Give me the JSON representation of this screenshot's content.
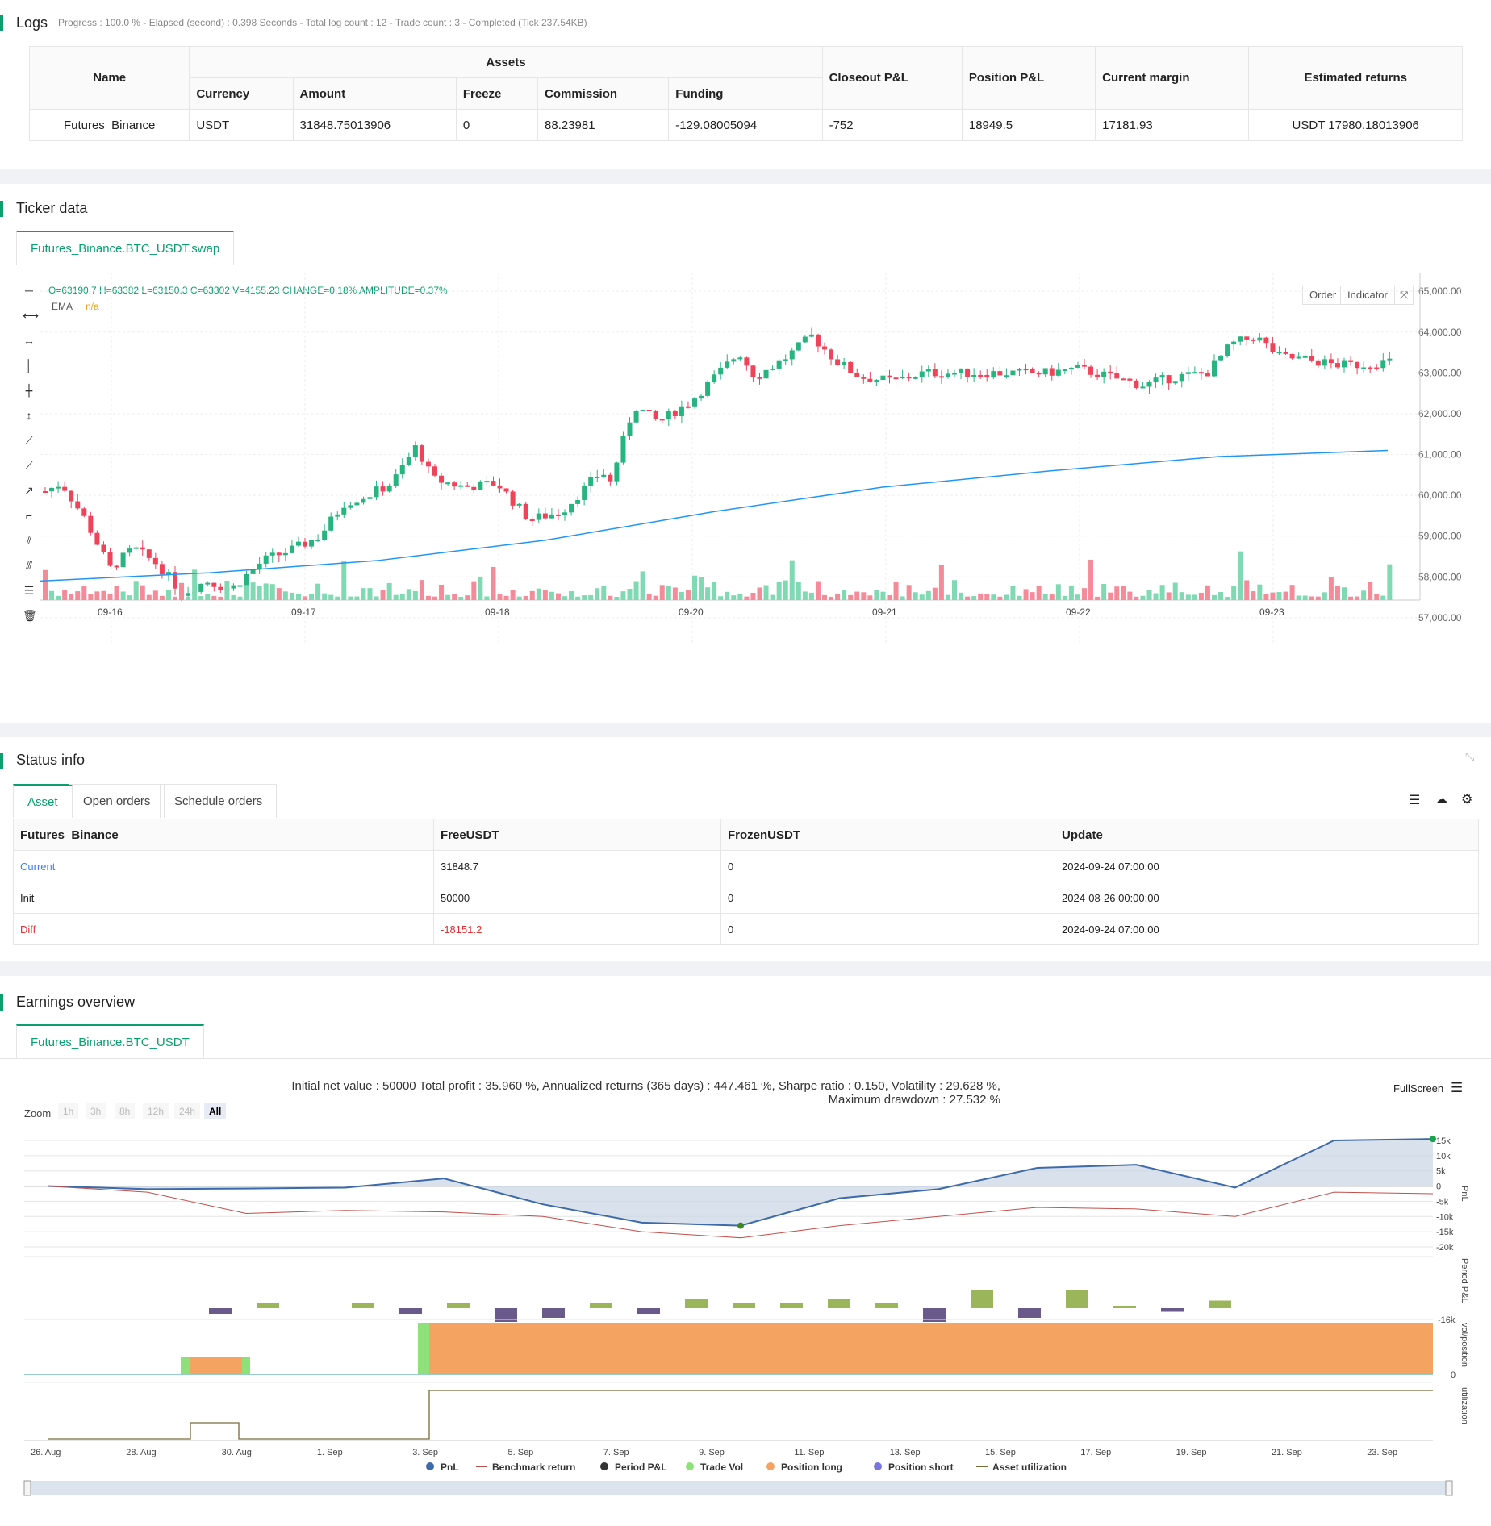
{
  "logs": {
    "title": "Logs",
    "progress": "Progress : 100.0 % - Elapsed (second) : 0.398 Seconds - Total log count : 12 - Trade count : 3 - Completed (Tick 237.54KB)",
    "headers": {
      "name": "Name",
      "assets": "Assets",
      "currency": "Currency",
      "amount": "Amount",
      "freeze": "Freeze",
      "commission": "Commission",
      "funding": "Funding",
      "closeout": "Closeout P&L",
      "position": "Position P&L",
      "margin": "Current margin",
      "returns": "Estimated returns"
    },
    "row": {
      "name": "Futures_Binance",
      "currency": "USDT",
      "amount": "31848.75013906",
      "freeze": "0",
      "commission": "88.23981",
      "funding": "-129.08005094",
      "closeout": "-752",
      "position": "18949.5",
      "margin": "17181.93",
      "returns": "USDT 17980.18013906"
    }
  },
  "ticker": {
    "title": "Ticker data",
    "tab": "Futures_Binance.BTC_USDT.swap",
    "ohlc": "O=63190.7 H=63382 L=63150.3 C=63302 V=4155.23 CHANGE=0.18% AMPLITUDE=0.37%",
    "ema_label": "EMA",
    "ema_value": "n/a",
    "order_btn": "Order",
    "indicator_btn": "Indicator",
    "y_ticks": [
      "65,000.00",
      "64,000.00",
      "63,000.00",
      "62,000.00",
      "61,000.00",
      "60,000.00",
      "59,000.00",
      "58,000.00",
      "57,000.00"
    ],
    "x_ticks": [
      "09-16",
      "09-17",
      "09-18",
      "09-20",
      "09-21",
      "09-22",
      "09-23"
    ]
  },
  "status": {
    "title": "Status info",
    "tabs": [
      "Asset",
      "Open orders",
      "Schedule orders"
    ],
    "headers": [
      "Futures_Binance",
      "FreeUSDT",
      "FrozenUSDT",
      "Update"
    ],
    "rows": [
      [
        "Current",
        "31848.7",
        "0",
        "2024-09-24 07:00:00"
      ],
      [
        "Init",
        "50000",
        "0",
        "2024-08-26 00:00:00"
      ],
      [
        "Diff",
        "-18151.2",
        "0",
        "2024-09-24 07:00:00"
      ]
    ]
  },
  "earnings": {
    "title": "Earnings overview",
    "tab": "Futures_Binance.BTC_USDT",
    "summary": "Initial net value : 50000 Total profit : 35.960 %, Annualized returns (365 days) : 447.461 %, Sharpe ratio : 0.150, Volatility : 29.628 %, Maximum drawdown : 27.532 %",
    "fullscreen": "FullScreen",
    "zoom_label": "Zoom",
    "zoom": [
      "1h",
      "3h",
      "8h",
      "12h",
      "24h",
      "All"
    ],
    "pnl_ticks": [
      "15k",
      "10k",
      "5k",
      "0",
      "-5k",
      "-10k",
      "-15k",
      "-20k"
    ],
    "pnl_axis": "PnL",
    "period_axis": "Period P&L",
    "period_tick": "-16k",
    "vol_axis": "vol/position",
    "vol_tick": "0",
    "util_axis": "utilization",
    "x_ticks": [
      "26. Aug",
      "28. Aug",
      "30. Aug",
      "1. Sep",
      "3. Sep",
      "5. Sep",
      "7. Sep",
      "9. Sep",
      "11. Sep",
      "13. Sep",
      "15. Sep",
      "17. Sep",
      "19. Sep",
      "21. Sep",
      "23. Sep"
    ],
    "legend": [
      "PnL",
      "Benchmark return",
      "Period P&L",
      "Trade Vol",
      "Position long",
      "Position short",
      "Asset utilization"
    ],
    "colors": {
      "pnl": "#3d6aa8",
      "benchmark": "#c0504d",
      "period": "#333",
      "tradevol": "#8de07a",
      "long": "#f4a460",
      "short": "#7777dd",
      "util": "#7a6a3a"
    }
  },
  "chart_data": [
    {
      "type": "line",
      "title": "Ticker data",
      "series": [
        {
          "name": "EMA",
          "values": [
            57900,
            58100,
            58400,
            58900,
            59600,
            60200,
            60600,
            60950,
            61100
          ]
        }
      ],
      "ylim": [
        56800,
        65300
      ]
    },
    {
      "type": "line",
      "x": [
        "26. Aug",
        "28. Aug",
        "30. Aug",
        "1. Sep",
        "3. Sep",
        "5. Sep",
        "7. Sep",
        "9. Sep",
        "11. Sep",
        "13. Sep",
        "15. Sep",
        "17. Sep",
        "19. Sep",
        "21. Sep",
        "23. Sep"
      ],
      "series": [
        {
          "name": "PnL",
          "values": [
            0,
            -1000,
            -800,
            -500,
            2500,
            -6000,
            -12000,
            -13000,
            -4000,
            -1000,
            6000,
            7000,
            -500,
            15000,
            15500
          ]
        },
        {
          "name": "Benchmark return",
          "values": [
            0,
            -2000,
            -9000,
            -8000,
            -8500,
            -10000,
            -15000,
            -17000,
            -13000,
            -10000,
            -7000,
            -7500,
            -10000,
            -2000,
            -2500
          ]
        }
      ],
      "ylim": [
        -20000,
        15000
      ]
    }
  ]
}
